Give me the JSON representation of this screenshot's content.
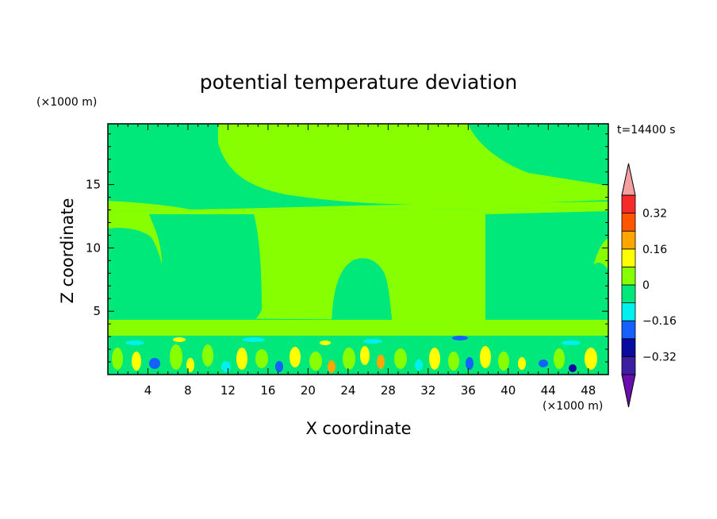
{
  "chart_data": {
    "type": "heatmap",
    "title": "potential temperature deviation",
    "xlabel": "X coordinate",
    "ylabel": "Z coordinate",
    "x_unit": "(×1000 m)",
    "y_unit": "(×1000 m)",
    "time_label": "t=14400 s",
    "xlim": [
      0,
      50
    ],
    "ylim": [
      0,
      19.8
    ],
    "x_ticks": [
      4,
      8,
      12,
      16,
      20,
      24,
      28,
      32,
      36,
      40,
      44,
      48
    ],
    "y_ticks": [
      5,
      10,
      15
    ],
    "colorbar": {
      "levels": [
        -0.4,
        -0.32,
        -0.24,
        -0.16,
        -0.08,
        0,
        0.08,
        0.16,
        0.24,
        0.32,
        0.4
      ],
      "tick_values": [
        0.32,
        0.16,
        0,
        -0.16,
        -0.32
      ],
      "tick_labels": [
        "0.32",
        "0.16",
        "0",
        "−0.16",
        "−0.32"
      ],
      "colors": [
        "#6a0dad",
        "#3b1fa0",
        "#0a0aa0",
        "#1560ff",
        "#00f0f0",
        "#00e87a",
        "#88ff00",
        "#ffff00",
        "#ffa500",
        "#ff5500",
        "#f52a2a",
        "#f5a0a0"
      ]
    }
  }
}
